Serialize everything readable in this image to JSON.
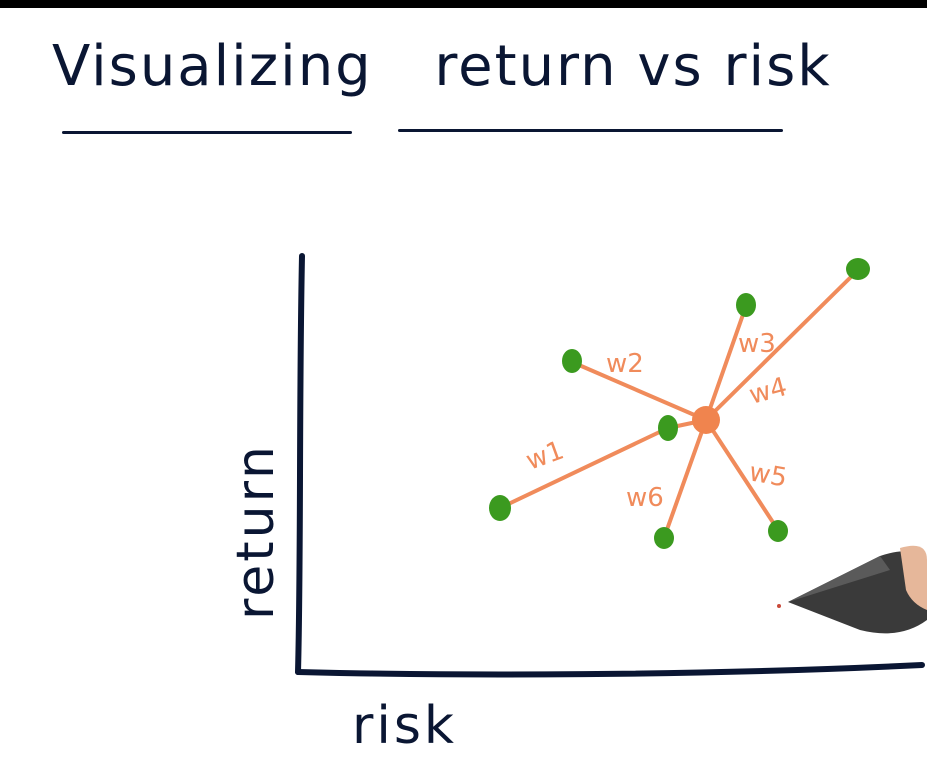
{
  "title": {
    "word1": "Visualizing",
    "word2": "return vs risk"
  },
  "axes": {
    "ylabel": "return",
    "xlabel": "risk"
  },
  "weights": {
    "w1": "w1",
    "w2": "w2",
    "w3": "w3",
    "w4": "w4",
    "w5": "w5",
    "w6": "w6"
  },
  "colors": {
    "ink": "#0a1633",
    "line": "#f08b5b",
    "dot": "#3b9a1f",
    "center": "#f0844e"
  }
}
